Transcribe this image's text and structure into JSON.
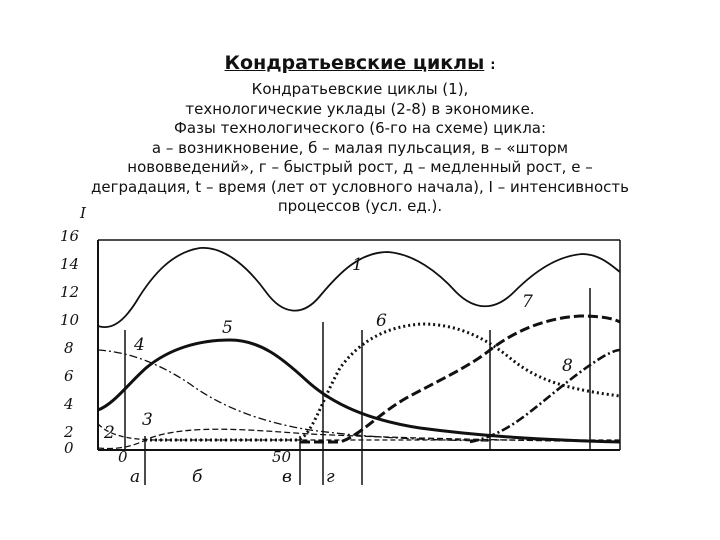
{
  "title": "Кондратьевские циклы",
  "title_suffix": ":",
  "caption_lines": [
    "Кондратьевские циклы (1),",
    "технологические уклады  (2-8) в экономике.",
    "Фазы технологического (6-го на схеме) цикла:",
    "а – возникновение, б – малая пульсация, в – «шторм",
    "нововведений», г – быстрый рост, д – медленный рост, е –",
    "деградация, t – время (лет от условного начала), I – интенсивность",
    "процессов (усл. ед.)."
  ],
  "diagram": {
    "y_axis_label": "I",
    "y_ticks": [
      "16",
      "14",
      "12",
      "10",
      "8",
      "6",
      "4",
      "2",
      "0"
    ],
    "x_tick_labels": [
      "0",
      "50"
    ],
    "phase_labels": [
      "а",
      "б",
      "в",
      "г"
    ],
    "curve_labels": [
      "1",
      "2",
      "3",
      "4",
      "5",
      "6",
      "7",
      "8"
    ]
  }
}
